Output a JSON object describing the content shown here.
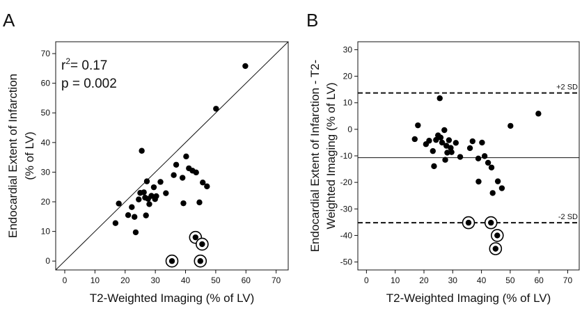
{
  "chart_data": [
    {
      "panel": "A",
      "type": "scatter",
      "xlabel": "T2-Weighted Imaging (% of LV)",
      "ylabel_lines": [
        "Endocardial Extent of Infarction",
        "(% of LV)"
      ],
      "xlim": [
        -3,
        74
      ],
      "ylim": [
        -3,
        74
      ],
      "xticks": [
        0,
        10,
        20,
        30,
        40,
        50,
        60,
        70
      ],
      "yticks": [
        0,
        10,
        20,
        30,
        40,
        50,
        60,
        70
      ],
      "identity_line": true,
      "stats": {
        "r2_prefix": "r",
        "r2_sup": "2",
        "r2_value": "= 0.17",
        "p_text": "p = 0.002"
      },
      "points": [
        {
          "x": 16.8,
          "y": 12.8
        },
        {
          "x": 17.9,
          "y": 19.4
        },
        {
          "x": 21.0,
          "y": 15.5
        },
        {
          "x": 22.2,
          "y": 18.2
        },
        {
          "x": 23.1,
          "y": 14.9
        },
        {
          "x": 23.5,
          "y": 9.7
        },
        {
          "x": 24.5,
          "y": 20.8
        },
        {
          "x": 25.0,
          "y": 23.0
        },
        {
          "x": 25.5,
          "y": 37.2
        },
        {
          "x": 26.2,
          "y": 23.2
        },
        {
          "x": 26.6,
          "y": 21.4
        },
        {
          "x": 26.9,
          "y": 15.4
        },
        {
          "x": 27.2,
          "y": 26.9
        },
        {
          "x": 27.6,
          "y": 21.0
        },
        {
          "x": 28.0,
          "y": 19.2
        },
        {
          "x": 28.7,
          "y": 22.0
        },
        {
          "x": 29.5,
          "y": 24.9
        },
        {
          "x": 29.9,
          "y": 20.9
        },
        {
          "x": 30.3,
          "y": 21.9
        },
        {
          "x": 31.7,
          "y": 26.7
        },
        {
          "x": 33.5,
          "y": 22.9
        },
        {
          "x": 36.1,
          "y": 29.0
        },
        {
          "x": 36.9,
          "y": 32.5
        },
        {
          "x": 39.0,
          "y": 28.1
        },
        {
          "x": 39.3,
          "y": 19.5
        },
        {
          "x": 40.2,
          "y": 35.3
        },
        {
          "x": 41.1,
          "y": 31.3
        },
        {
          "x": 42.3,
          "y": 30.5
        },
        {
          "x": 43.5,
          "y": 29.9
        },
        {
          "x": 44.6,
          "y": 19.8
        },
        {
          "x": 45.7,
          "y": 26.5
        },
        {
          "x": 47.1,
          "y": 25.2
        },
        {
          "x": 50.1,
          "y": 51.4
        },
        {
          "x": 59.8,
          "y": 65.8
        }
      ],
      "circled_points": [
        {
          "x": 35.5,
          "y": 0.0
        },
        {
          "x": 43.3,
          "y": 8.0
        },
        {
          "x": 45.5,
          "y": 5.7
        },
        {
          "x": 44.9,
          "y": 0.0
        }
      ]
    },
    {
      "panel": "B",
      "type": "scatter",
      "xlabel": "T2-Weighted Imaging (% of LV)",
      "ylabel_lines": [
        "Endocardial Extent of Infarction - T2-",
        "Weighted Imaging (% of LV)"
      ],
      "xlim": [
        -3,
        74
      ],
      "ylim": [
        -53,
        33
      ],
      "xticks": [
        0,
        10,
        20,
        30,
        40,
        50,
        60,
        70
      ],
      "yticks": [
        -50,
        -40,
        -30,
        -20,
        -10,
        0,
        10,
        20,
        30
      ],
      "reference_lines": [
        {
          "y": 13.7,
          "style": "dashed",
          "label": "+2 SD"
        },
        {
          "y": -10.7,
          "style": "solid",
          "label": ""
        },
        {
          "y": -35.2,
          "style": "dashed",
          "label": "-2 SD"
        }
      ],
      "points": [
        {
          "x": 16.8,
          "y": -3.7
        },
        {
          "x": 17.9,
          "y": 1.5
        },
        {
          "x": 20.7,
          "y": -5.6
        },
        {
          "x": 21.8,
          "y": -4.3
        },
        {
          "x": 23.1,
          "y": -8.2
        },
        {
          "x": 23.5,
          "y": -13.9
        },
        {
          "x": 24.2,
          "y": -4.0
        },
        {
          "x": 24.9,
          "y": -2.3
        },
        {
          "x": 25.5,
          "y": 11.7
        },
        {
          "x": 25.8,
          "y": -3.1
        },
        {
          "x": 26.3,
          "y": -5.0
        },
        {
          "x": 27.1,
          "y": -0.3
        },
        {
          "x": 27.4,
          "y": -11.5
        },
        {
          "x": 27.8,
          "y": -6.2
        },
        {
          "x": 28.1,
          "y": -8.8
        },
        {
          "x": 28.7,
          "y": -4.1
        },
        {
          "x": 29.3,
          "y": -7.0
        },
        {
          "x": 29.6,
          "y": -8.6
        },
        {
          "x": 31.1,
          "y": -5.1
        },
        {
          "x": 32.6,
          "y": -10.4
        },
        {
          "x": 36.0,
          "y": -7.1
        },
        {
          "x": 36.9,
          "y": -4.5
        },
        {
          "x": 38.9,
          "y": -11.0
        },
        {
          "x": 39.0,
          "y": -19.7
        },
        {
          "x": 40.2,
          "y": -5.0
        },
        {
          "x": 41.1,
          "y": -10.1
        },
        {
          "x": 42.3,
          "y": -12.6
        },
        {
          "x": 43.5,
          "y": -14.4
        },
        {
          "x": 43.9,
          "y": -24.0
        },
        {
          "x": 45.7,
          "y": -19.6
        },
        {
          "x": 47.1,
          "y": -22.2
        },
        {
          "x": 50.1,
          "y": 1.3
        },
        {
          "x": 59.8,
          "y": 5.9
        }
      ],
      "circled_points": [
        {
          "x": 35.5,
          "y": -35.2
        },
        {
          "x": 43.3,
          "y": -35.2
        },
        {
          "x": 45.5,
          "y": -40.0
        },
        {
          "x": 44.9,
          "y": -45.0
        }
      ]
    }
  ]
}
